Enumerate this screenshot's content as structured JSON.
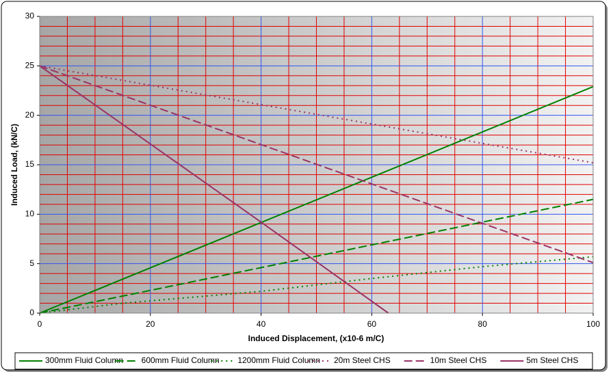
{
  "chart_data": {
    "type": "line",
    "xlabel": "Induced Displacement, (x10-6 m/C)",
    "ylabel": "Induced Load, (kN/C)",
    "xlim": [
      0,
      100
    ],
    "ylim": [
      0,
      30
    ],
    "xticks": [
      0,
      20,
      40,
      60,
      80,
      100
    ],
    "yticks": [
      0,
      5,
      10,
      15,
      20,
      25,
      30
    ],
    "xminorticks": [
      5,
      10,
      15,
      25,
      30,
      35,
      45,
      50,
      55,
      65,
      70,
      75,
      85,
      90,
      95
    ],
    "yminorticks": [
      1,
      2,
      3,
      4,
      6,
      7,
      8,
      9,
      11,
      12,
      13,
      14,
      16,
      17,
      18,
      19,
      21,
      22,
      23,
      24,
      26,
      27,
      28,
      29
    ],
    "grid": true,
    "legend": "bottom",
    "series": [
      {
        "name": "300mm Fluid Column",
        "color": "#008000",
        "dash": "solid",
        "x": [
          0,
          100
        ],
        "values": [
          0,
          22.9
        ]
      },
      {
        "name": "600mm Fluid Column",
        "color": "#008000",
        "dash": "dashed",
        "x": [
          0,
          100
        ],
        "values": [
          0,
          11.5
        ]
      },
      {
        "name": "1200mm Fluid Column",
        "color": "#008000",
        "dash": "dotted",
        "x": [
          0,
          15,
          40,
          60,
          80,
          100
        ],
        "values": [
          0,
          1.0,
          2.2,
          3.5,
          4.7,
          5.7
        ]
      },
      {
        "name": "20m Steel CHS",
        "color": "#993366",
        "dash": "dotted",
        "x": [
          0,
          100
        ],
        "values": [
          25,
          15.2
        ]
      },
      {
        "name": "10m Steel CHS",
        "color": "#993366",
        "dash": "dashed",
        "x": [
          0,
          100
        ],
        "values": [
          25,
          5.1
        ]
      },
      {
        "name": "5m Steel CHS",
        "color": "#993366",
        "dash": "solid",
        "x": [
          0,
          40,
          63
        ],
        "values": [
          25,
          9.2,
          0
        ]
      }
    ]
  }
}
